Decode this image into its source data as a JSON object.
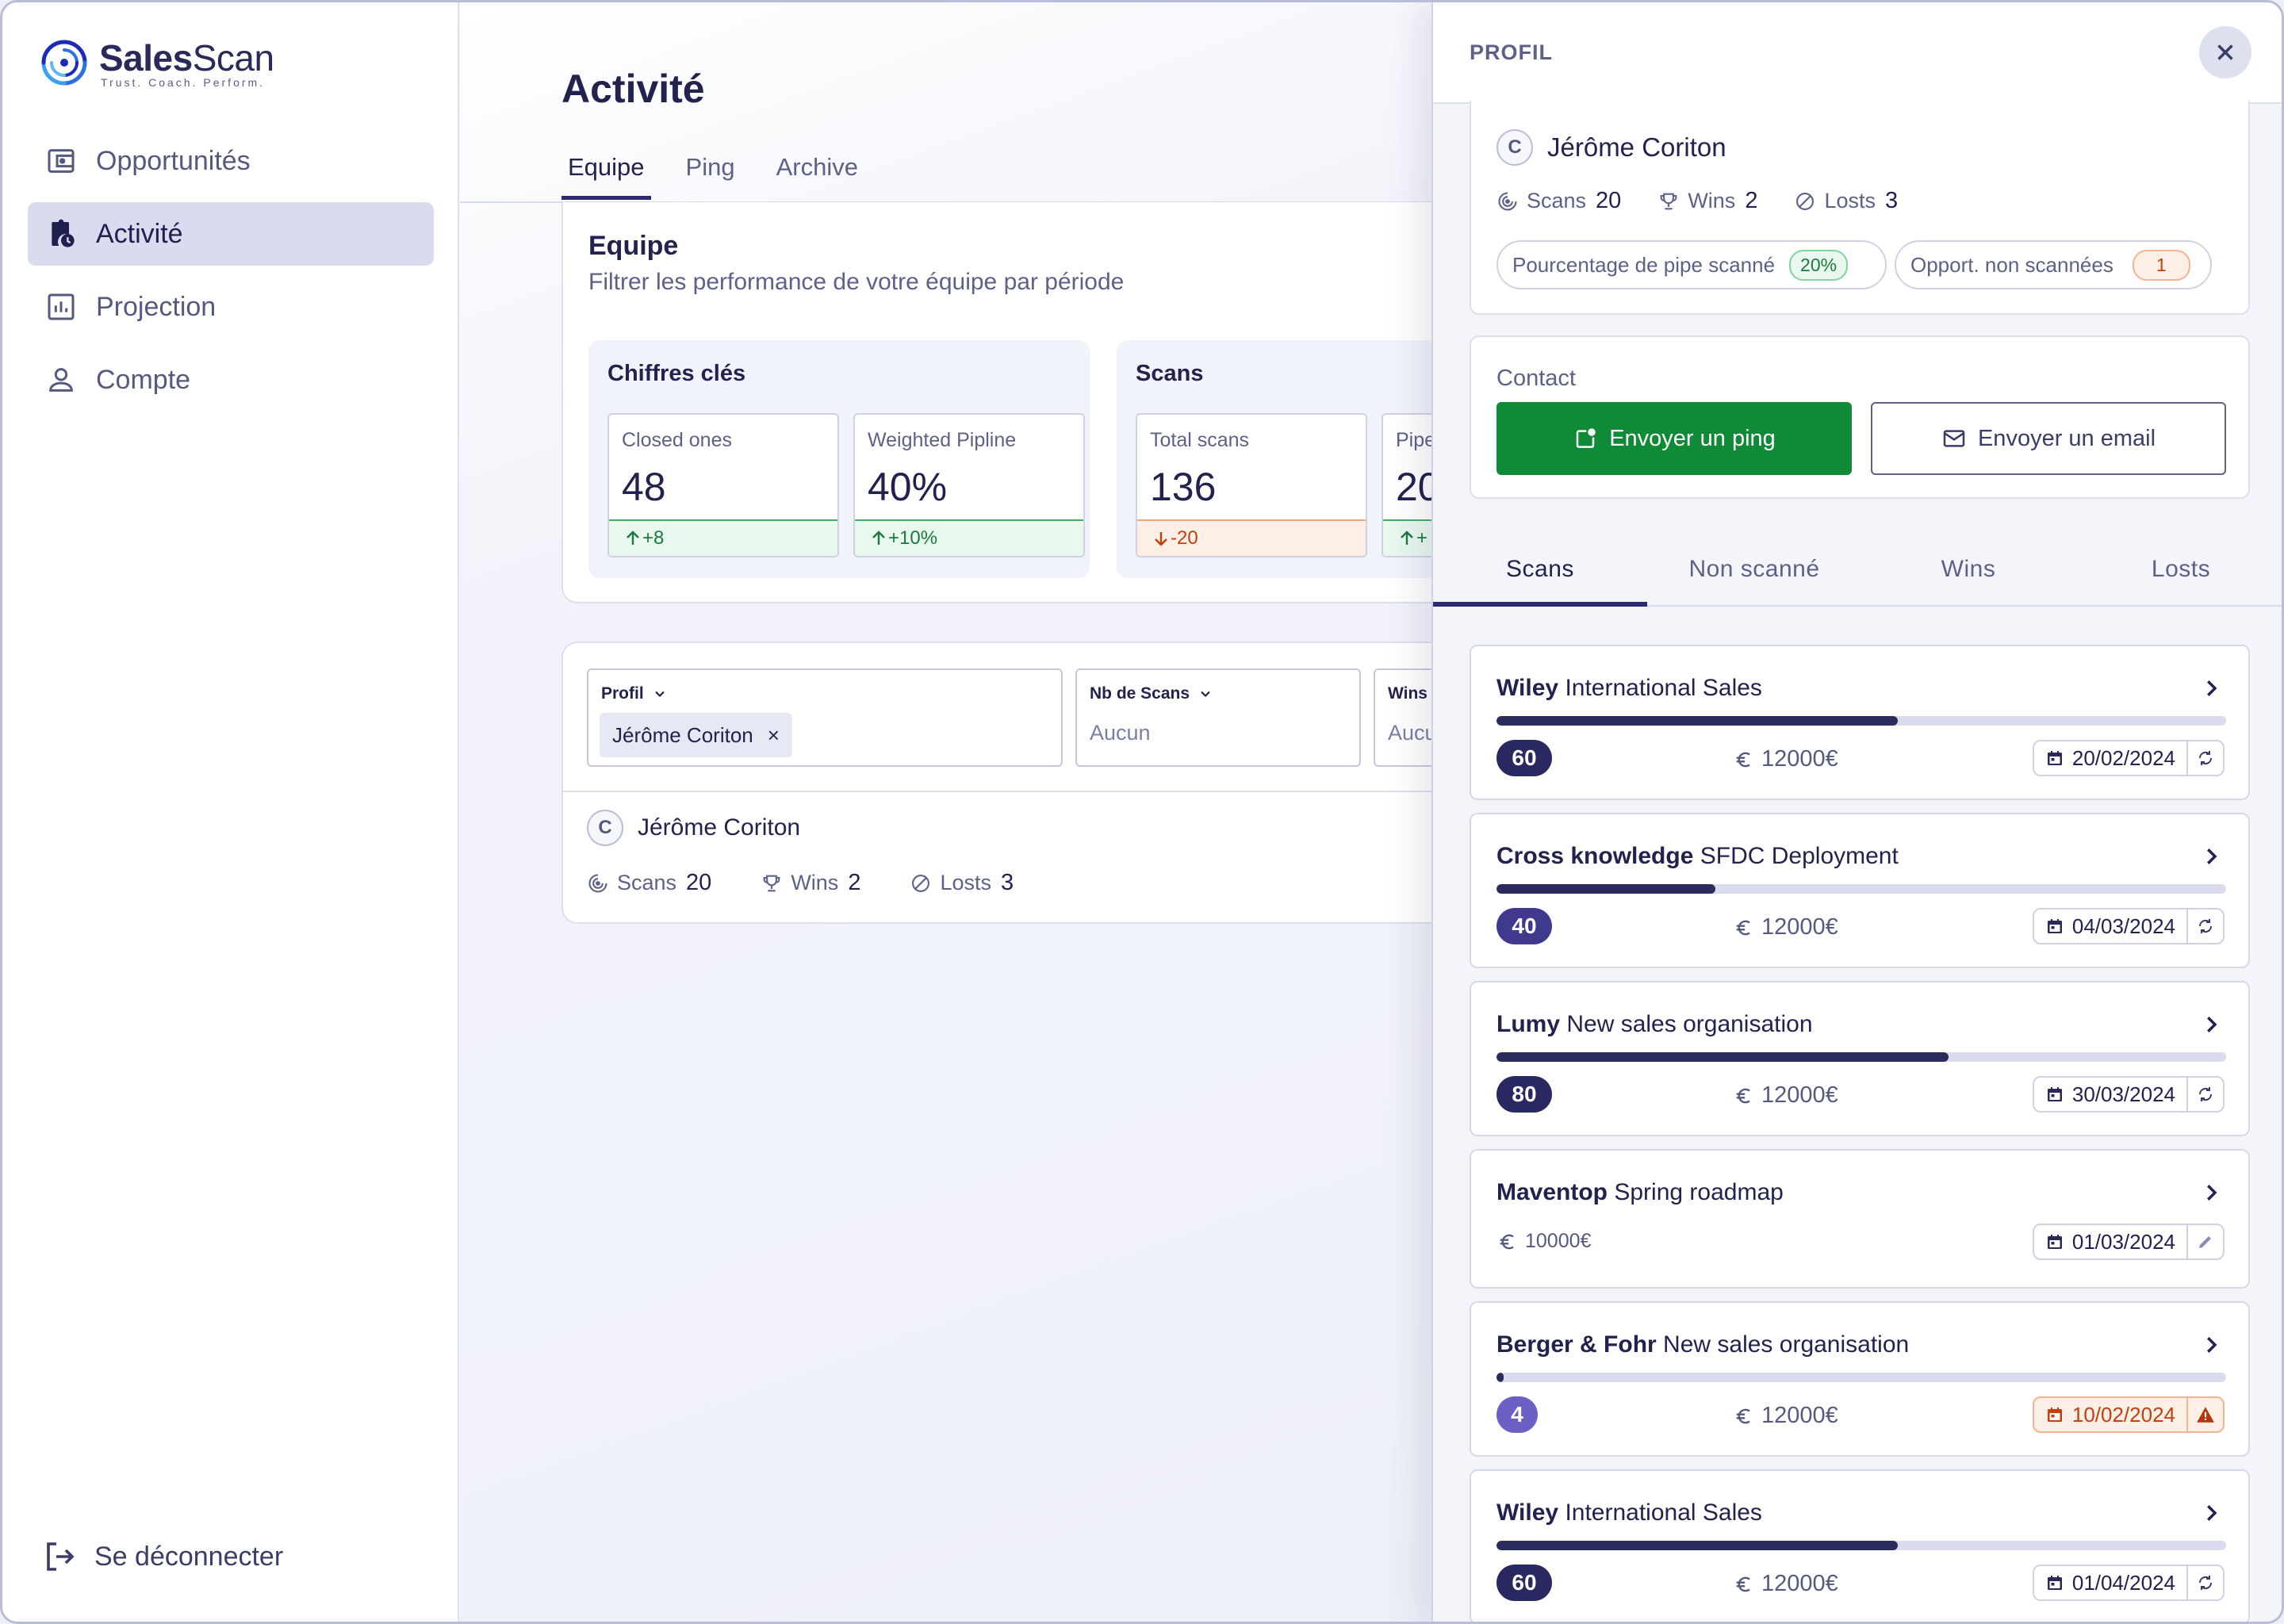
{
  "brand": {
    "name_bold": "Sales",
    "name_light": "Scan",
    "tagline": "Trust. Coach. Perform."
  },
  "sidebar": {
    "items": [
      {
        "label": "Opportunités",
        "icon": "wallet-icon",
        "active": false
      },
      {
        "label": "Activité",
        "icon": "clipboard-clock-icon",
        "active": true
      },
      {
        "label": "Projection",
        "icon": "bar-chart-icon",
        "active": false
      },
      {
        "label": "Compte",
        "icon": "user-icon",
        "active": false
      }
    ],
    "logout_label": "Se déconnecter"
  },
  "main": {
    "title": "Activité",
    "tabs": [
      {
        "label": "Equipe",
        "active": true
      },
      {
        "label": "Ping",
        "active": false
      },
      {
        "label": "Archive",
        "active": false
      }
    ],
    "equipe": {
      "title": "Equipe",
      "subtitle": "Filtrer les performance de votre équipe par période",
      "groups": [
        {
          "title": "Chiffres clés",
          "kpis": [
            {
              "label": "Closed ones",
              "value": "48",
              "delta": "+8",
              "trend": "up"
            },
            {
              "label": "Weighted Pipline",
              "value": "40%",
              "delta": "+10%",
              "trend": "up"
            }
          ]
        },
        {
          "title": "Scans",
          "kpis": [
            {
              "label": "Total scans",
              "value": "136",
              "delta": "-20",
              "trend": "down"
            },
            {
              "label": "Pipe",
              "value": "20",
              "delta": "+",
              "trend": "up"
            }
          ]
        }
      ]
    },
    "filters": {
      "profil": {
        "label": "Profil",
        "chip": "Jérôme Coriton",
        "chip_remove": "×"
      },
      "nb_scans": {
        "label": "Nb de Scans",
        "placeholder": "Aucun"
      },
      "wins": {
        "label": "Wins",
        "placeholder": "Aucun"
      }
    },
    "person": {
      "initial": "C",
      "name": "Jérôme Coriton",
      "stats": [
        {
          "label": "Scans",
          "value": "20",
          "icon": "scan-icon"
        },
        {
          "label": "Wins",
          "value": "2",
          "icon": "trophy-icon"
        },
        {
          "label": "Losts",
          "value": "3",
          "icon": "block-icon"
        }
      ]
    }
  },
  "drawer": {
    "title": "PROFIL",
    "profile": {
      "initial": "C",
      "name": "Jérôme Coriton",
      "stats": [
        {
          "label": "Scans",
          "value": "20"
        },
        {
          "label": "Wins",
          "value": "2"
        },
        {
          "label": "Losts",
          "value": "3"
        }
      ],
      "pipe_label": "Pourcentage de pipe scanné",
      "pipe_value": "20%",
      "unscanned_label": "Opport. non scannées",
      "unscanned_value": "1"
    },
    "contact": {
      "label": "Contact",
      "ping_button": "Envoyer un ping",
      "email_button": "Envoyer un email"
    },
    "tabs": [
      {
        "label": "Scans",
        "active": true
      },
      {
        "label": "Non scanné",
        "active": false
      },
      {
        "label": "Wins",
        "active": false
      },
      {
        "label": "Losts",
        "active": false
      }
    ],
    "opportunities": [
      {
        "company": "Wiley",
        "project": "International Sales",
        "score": "60",
        "progress": 0.55,
        "amount": "12000€",
        "date": "20/02/2024",
        "action": "refresh",
        "warn": false,
        "score_color": "#2a2860"
      },
      {
        "company": "Cross knowledge",
        "project": "SFDC Deployment",
        "score": "40",
        "progress": 0.3,
        "amount": "12000€",
        "date": "04/03/2024",
        "action": "refresh",
        "warn": false,
        "score_color": "#3f3a8e"
      },
      {
        "company": "Lumy",
        "project": "New sales organisation",
        "score": "80",
        "progress": 0.62,
        "amount": "12000€",
        "date": "30/03/2024",
        "action": "refresh",
        "warn": false,
        "score_color": "#2a2860"
      },
      {
        "company": "Maventop",
        "project": "Spring roadmap",
        "score": null,
        "progress": null,
        "amount": "10000€",
        "date": "01/03/2024",
        "action": "edit",
        "warn": false,
        "score_color": null
      },
      {
        "company": "Berger & Fohr",
        "project": "New sales organisation",
        "score": "4",
        "progress": 0.01,
        "amount": "12000€",
        "date": "10/02/2024",
        "action": "warning",
        "warn": true,
        "score_color": "#6b5fc4"
      },
      {
        "company": "Wiley",
        "project": "International Sales",
        "score": "60",
        "progress": 0.55,
        "amount": "12000€",
        "date": "01/04/2024",
        "action": "refresh",
        "warn": false,
        "score_color": "#2a2860"
      }
    ]
  }
}
